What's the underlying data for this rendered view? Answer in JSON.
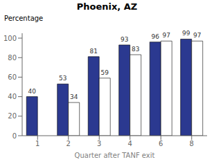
{
  "chart_data": {
    "type": "bar",
    "title": "Phoenix, AZ",
    "xlabel": "Quarter after TANF exit",
    "ylabel": "Percentage",
    "categories": [
      "1",
      "2",
      "3",
      "4",
      "6",
      "8"
    ],
    "series": [
      {
        "color": "#2B3990",
        "values": [
          40,
          53,
          81,
          93,
          96,
          99
        ]
      },
      {
        "color": "#FFFFFF",
        "values": [
          0,
          34,
          59,
          83,
          97,
          97
        ]
      }
    ],
    "ylim": [
      0,
      105
    ],
    "yticks": [
      0,
      20,
      40,
      60,
      80,
      100
    ],
    "grid": false,
    "data_labels": true
  }
}
